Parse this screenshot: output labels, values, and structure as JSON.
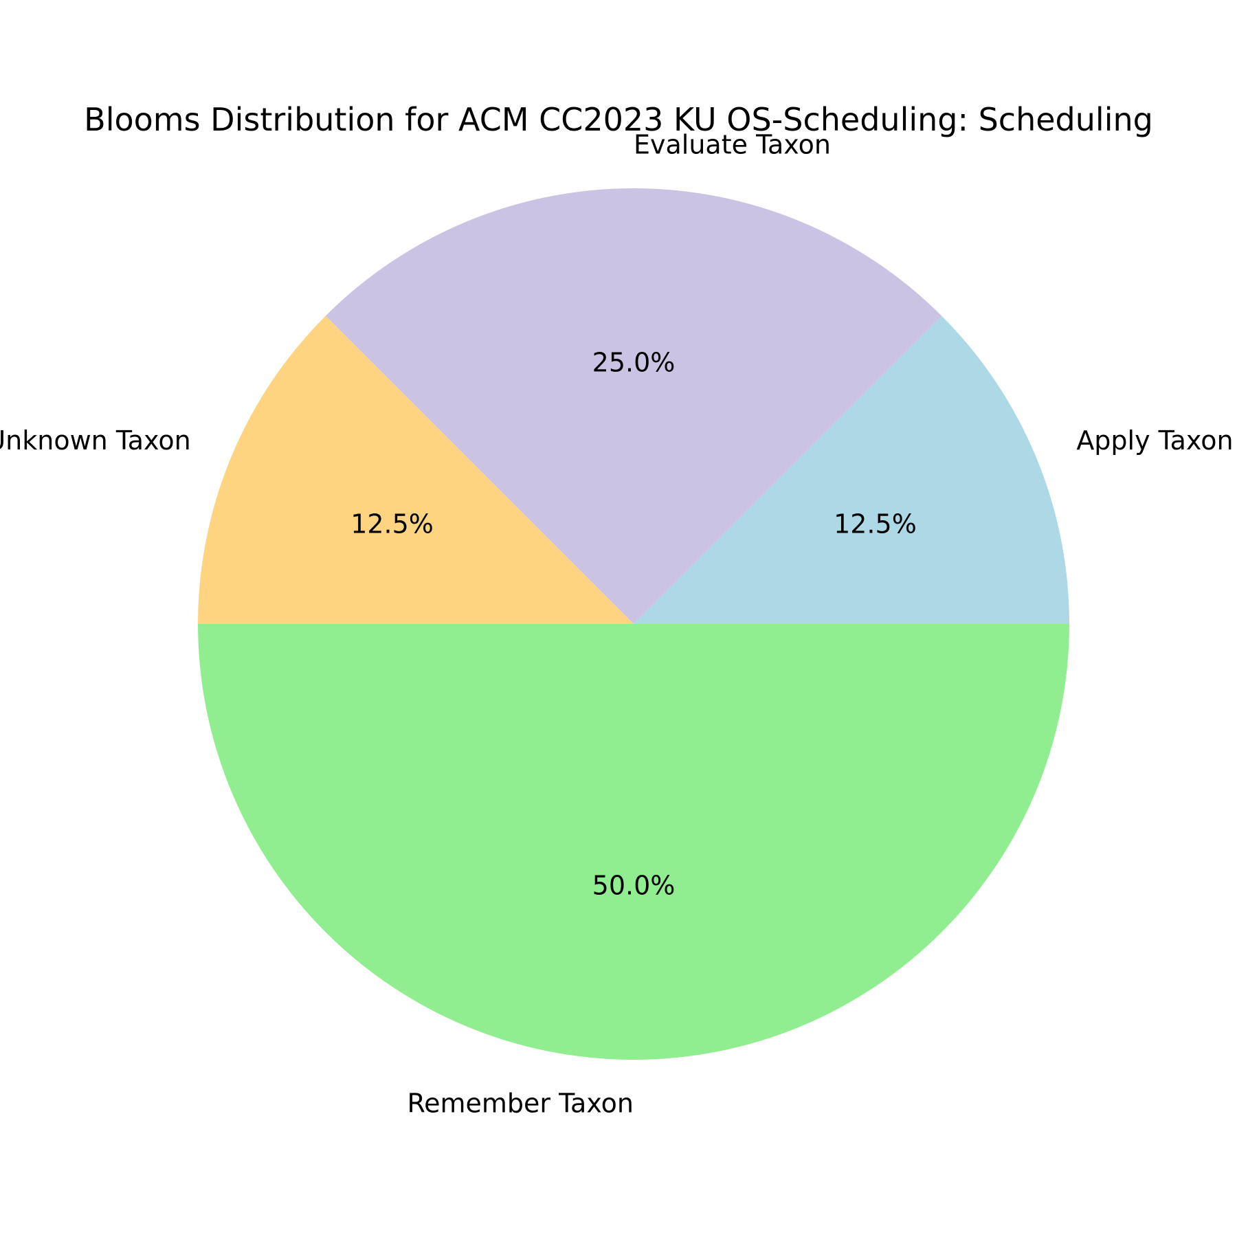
{
  "chart_data": {
    "type": "pie",
    "title": "Blooms Distribution for ACM CC2023 KU OS-Scheduling: Scheduling",
    "start_angle_deg": 180,
    "direction": "counterclockwise",
    "slices": [
      {
        "label": "Remember Taxon",
        "value": 50.0,
        "pct_label": "50.0%",
        "color": "#90ee90"
      },
      {
        "label": "Apply Taxon",
        "value": 12.5,
        "pct_label": "12.5%",
        "color": "#add8e6"
      },
      {
        "label": "Evaluate Taxon",
        "value": 25.0,
        "pct_label": "25.0%",
        "color": "#cbc3e3"
      },
      {
        "label": "Unknown Taxon",
        "value": 12.5,
        "pct_label": "12.5%",
        "color": "#fed481"
      }
    ]
  }
}
